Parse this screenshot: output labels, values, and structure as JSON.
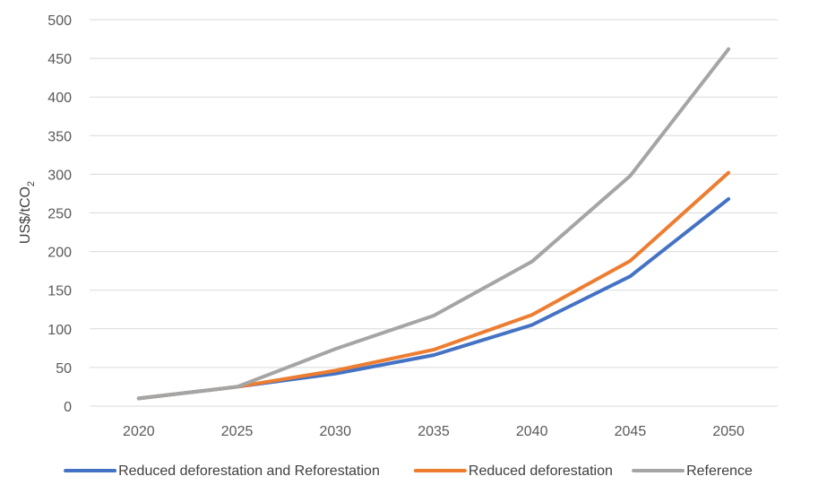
{
  "chart_data": {
    "type": "line",
    "title": "",
    "xlabel": "",
    "ylabel": "US$/tCO2",
    "ylabel_main": "US$/tCO",
    "ylabel_sub": "2",
    "x": [
      "2020",
      "2025",
      "2030",
      "2035",
      "2040",
      "2045",
      "2050"
    ],
    "yticks": [
      "0",
      "50",
      "100",
      "150",
      "200",
      "250",
      "300",
      "350",
      "400",
      "450",
      "500"
    ],
    "ylim": [
      0,
      500
    ],
    "grid": true,
    "legend_position": "bottom",
    "series": [
      {
        "name": "Reduced deforestation and Reforestation",
        "color": "#4472C4",
        "values": [
          10,
          25,
          42,
          66,
          105,
          168,
          268
        ]
      },
      {
        "name": "Reduced deforestation",
        "color": "#ED7D31",
        "values": [
          10,
          25,
          46,
          73,
          118,
          188,
          302
        ]
      },
      {
        "name": "Reference",
        "color": "#A5A5A5",
        "values": [
          10,
          25,
          74,
          117,
          187,
          298,
          462
        ]
      }
    ]
  }
}
